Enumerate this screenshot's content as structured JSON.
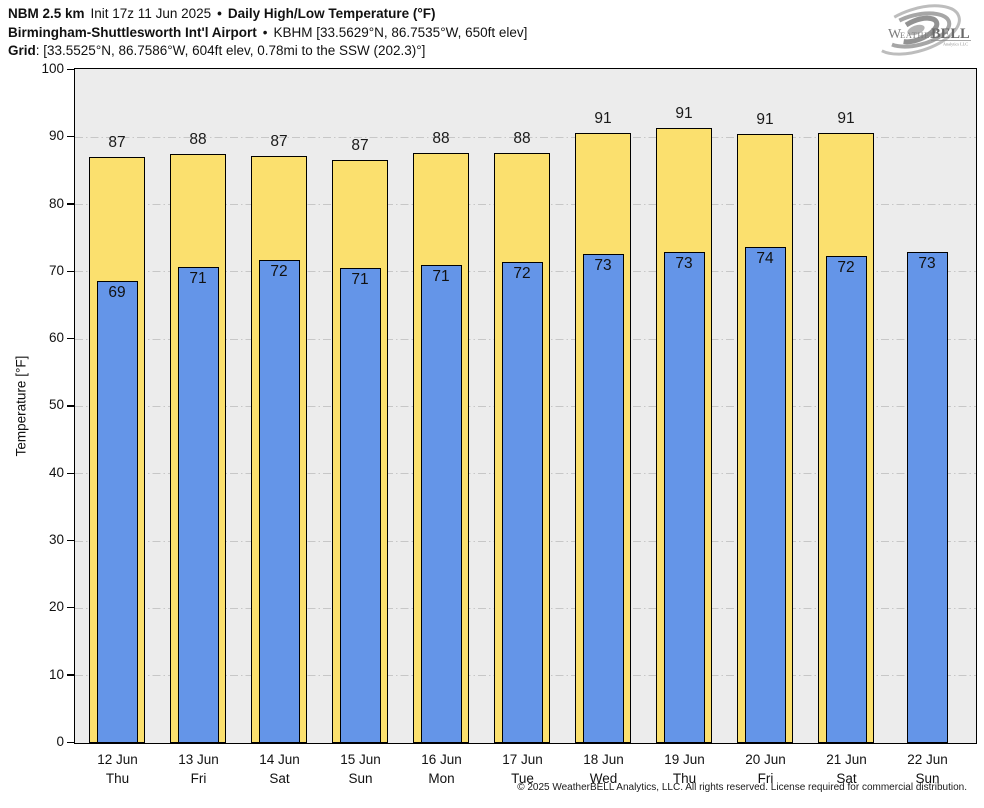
{
  "header": {
    "line1": {
      "model": "NBM 2.5 km",
      "init": "Init 17z 11 Jun 2025",
      "bullet": "•",
      "product": "Daily High/Low Temperature (°F)"
    },
    "line2": {
      "station": "Birmingham-Shuttlesworth Int'l Airport",
      "bullet": "•",
      "details": "KBHM [33.5629°N, 86.7535°W, 650ft elev]"
    },
    "line3": {
      "label": "Grid",
      "details": ": [33.5525°N, 86.7586°W, 604ft elev, 0.78mi to the SSW (202.3)°]"
    }
  },
  "logo": {
    "word_start": "W",
    "word_mid": "EATHER",
    "word_end": "BELL",
    "subtext": "Analytics LLC"
  },
  "chart_data": {
    "type": "bar",
    "title": "Daily High/Low Temperature (°F)",
    "ylabel": "Temperature [°F]",
    "ylim": [
      0,
      100
    ],
    "ytick_step": 10,
    "grid": "horizontal dash-dot gridlines every 10°F",
    "legend_position": "none",
    "categories": [
      "12 Jun",
      "13 Jun",
      "14 Jun",
      "15 Jun",
      "16 Jun",
      "17 Jun",
      "18 Jun",
      "19 Jun",
      "20 Jun",
      "21 Jun",
      "22 Jun"
    ],
    "weekdays": [
      "Thu",
      "Fri",
      "Sat",
      "Sun",
      "Mon",
      "Tue",
      "Wed",
      "Thu",
      "Fri",
      "Sat",
      "Sun"
    ],
    "series": [
      {
        "name": "Daily High",
        "color": "#fbe06e",
        "labels": [
          87,
          88,
          87,
          87,
          88,
          88,
          91,
          91,
          91,
          91,
          null
        ],
        "values": [
          87.1,
          87.5,
          87.2,
          86.6,
          87.6,
          87.7,
          90.6,
          91.4,
          90.5,
          90.7,
          null
        ]
      },
      {
        "name": "Daily Low",
        "color": "#6495e8",
        "labels": [
          69,
          71,
          72,
          71,
          71,
          72,
          73,
          73,
          74,
          72,
          73
        ],
        "values": [
          68.7,
          70.8,
          71.7,
          70.6,
          71.0,
          71.5,
          72.6,
          73.0,
          73.7,
          72.4,
          72.9
        ]
      }
    ]
  },
  "colors": {
    "high_bar": "#fbe06e",
    "low_bar": "#6495e8",
    "plot_background": "#ececec",
    "gridline": "#c7c7c7",
    "bar_border": "#000000",
    "page_background": "#ffffff"
  },
  "footer": {
    "copyright": "© 2025 WeatherBELL Analytics, LLC. All rights reserved. License required for commercial distribution."
  }
}
